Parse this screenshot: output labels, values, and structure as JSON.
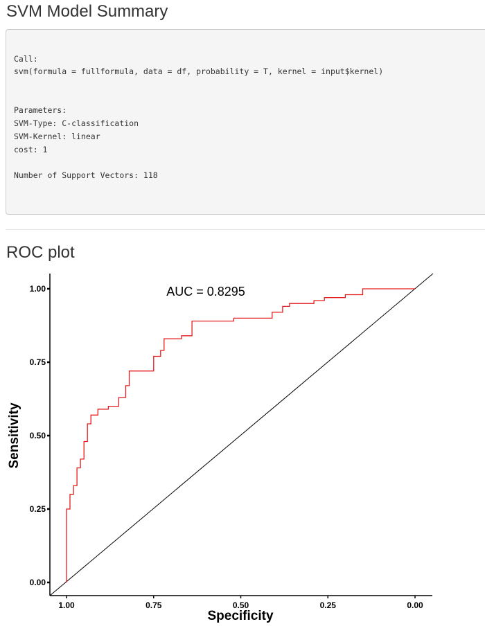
{
  "summary": {
    "title": "SVM Model Summary",
    "lines": [
      "",
      "Call:",
      "svm(formula = fullformula, data = df, probability = T, kernel = input$kernel)",
      "",
      "",
      "Parameters:",
      "SVM-Type: C-classification",
      "SVM-Kernel: linear",
      "cost: 1",
      "",
      "Number of Support Vectors: 118"
    ]
  },
  "roc": {
    "title": "ROC plot"
  },
  "chart_data": {
    "type": "line",
    "title": "",
    "annotation": "AUC = 0.8295",
    "xlabel": "Specificity",
    "ylabel": "Sensitivity",
    "x_reversed": true,
    "xlim": [
      1.0,
      0.0
    ],
    "ylim": [
      0.0,
      1.0
    ],
    "xticks": [
      "1.00",
      "0.75",
      "0.50",
      "0.25",
      "0.00"
    ],
    "yticks": [
      "0.00",
      "0.25",
      "0.50",
      "0.75",
      "1.00"
    ],
    "grid": false,
    "colors": {
      "roc": "#e41a1c",
      "reference": "#000000"
    },
    "series": [
      {
        "values_x_specificity": [
          1.0,
          1.0,
          0.99,
          0.99,
          0.98,
          0.98,
          0.97,
          0.97,
          0.96,
          0.96,
          0.95,
          0.95,
          0.94,
          0.94,
          0.93,
          0.93,
          0.91,
          0.91,
          0.88,
          0.88,
          0.85,
          0.85,
          0.83,
          0.83,
          0.82,
          0.82,
          0.8,
          0.8,
          0.75,
          0.75,
          0.73,
          0.73,
          0.72,
          0.72,
          0.7,
          0.7,
          0.67,
          0.67,
          0.64,
          0.64,
          0.52,
          0.52,
          0.41,
          0.41,
          0.38,
          0.38,
          0.36,
          0.36,
          0.29,
          0.29,
          0.26,
          0.26,
          0.2,
          0.2,
          0.15,
          0.15,
          0.0
        ],
        "values_y_sensitivity": [
          0.0,
          0.25,
          0.25,
          0.3,
          0.3,
          0.33,
          0.33,
          0.39,
          0.39,
          0.42,
          0.42,
          0.48,
          0.48,
          0.54,
          0.54,
          0.57,
          0.57,
          0.59,
          0.59,
          0.6,
          0.6,
          0.63,
          0.63,
          0.67,
          0.67,
          0.72,
          0.72,
          0.72,
          0.72,
          0.77,
          0.77,
          0.79,
          0.79,
          0.83,
          0.83,
          0.83,
          0.83,
          0.84,
          0.84,
          0.89,
          0.89,
          0.9,
          0.9,
          0.92,
          0.92,
          0.94,
          0.94,
          0.95,
          0.95,
          0.96,
          0.96,
          0.97,
          0.97,
          0.98,
          0.98,
          1.0,
          1.0
        ]
      }
    ]
  }
}
